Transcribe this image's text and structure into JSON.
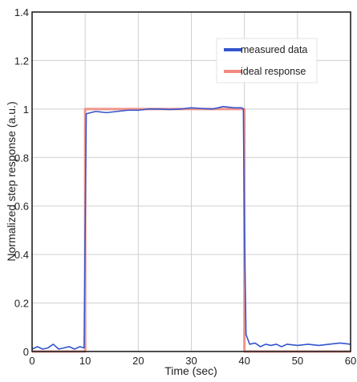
{
  "chart_data": {
    "type": "line",
    "xlabel": "Time (sec)",
    "ylabel": "Normalized step response (a.u.)",
    "xlim": [
      0,
      60
    ],
    "ylim": [
      0,
      1.4
    ],
    "x_ticks": [
      0,
      10,
      20,
      30,
      40,
      50,
      60
    ],
    "y_ticks": [
      0,
      0.2,
      0.4,
      0.6,
      0.8,
      1,
      1.2,
      1.4
    ],
    "x_tick_labels": [
      "0",
      "10",
      "20",
      "30",
      "40",
      "50",
      "60"
    ],
    "y_tick_labels": [
      "0",
      "0.2",
      "0.4",
      "0.6",
      "0.8",
      "1",
      "1.2",
      "1.4"
    ],
    "grid": true,
    "legend": {
      "position": "top-right",
      "entries": [
        "measured data",
        "ideal response"
      ]
    },
    "series": [
      {
        "name": "measured data",
        "color": "#3355cc",
        "x": [
          0,
          1,
          2,
          3,
          4,
          5,
          6,
          7,
          8,
          9,
          9.8,
          10,
          10.2,
          11,
          12,
          14,
          16,
          18,
          20,
          22,
          24,
          26,
          28,
          30,
          32,
          34,
          36,
          38,
          39.5,
          39.8,
          40,
          40.3,
          41,
          42,
          43,
          44,
          45,
          46,
          47,
          48,
          50,
          52,
          54,
          56,
          58,
          60
        ],
        "y": [
          0.01,
          0.02,
          0.01,
          0.015,
          0.03,
          0.01,
          0.015,
          0.02,
          0.01,
          0.02,
          0.015,
          0.5,
          0.98,
          0.985,
          0.99,
          0.985,
          0.99,
          0.995,
          0.995,
          1.0,
          1.0,
          0.998,
          1.0,
          1.005,
          1.002,
          1.0,
          1.01,
          1.005,
          1.005,
          1.0,
          0.5,
          0.07,
          0.03,
          0.035,
          0.02,
          0.03,
          0.025,
          0.03,
          0.02,
          0.03,
          0.025,
          0.03,
          0.025,
          0.03,
          0.035,
          0.03
        ]
      },
      {
        "name": "ideal response",
        "color": "#f08a80",
        "x": [
          0,
          10,
          10,
          40,
          40,
          60
        ],
        "y": [
          0,
          0,
          1,
          1,
          0,
          0
        ]
      }
    ]
  }
}
